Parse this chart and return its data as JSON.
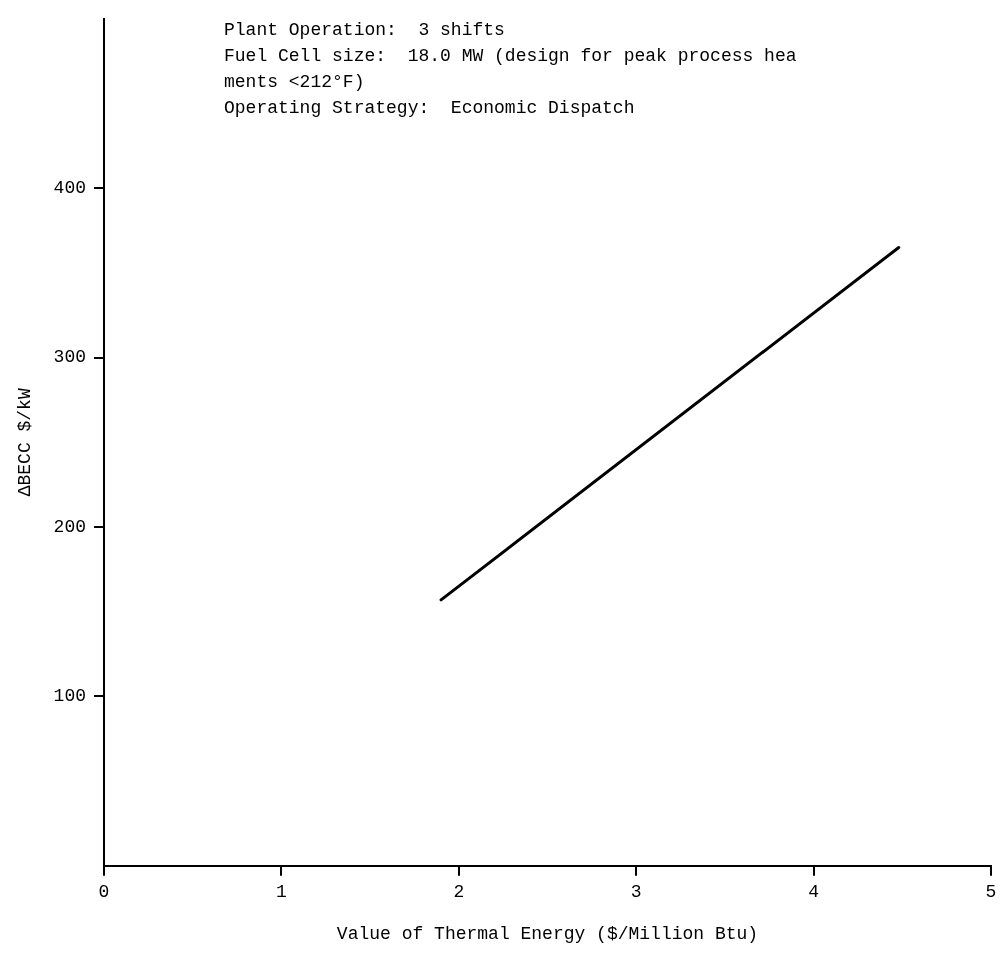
{
  "chart_data": {
    "type": "line",
    "xlabel": "Value of Thermal Energy ($/Million Btu)",
    "ylabel": "ΔBECC $/kW",
    "annotations": [
      "Plant Operation:  3 shifts",
      "Fuel Cell size:  18.0 MW (design for peak process hea",
      "ments <212°F)",
      "Operating Strategy:  Economic Dispatch"
    ],
    "series": [
      {
        "x": [
          1.9,
          4.48
        ],
        "values": [
          157,
          365
        ],
        "color": "#000000"
      }
    ],
    "xlim": [
      0,
      5
    ],
    "xticks": [
      0,
      1,
      2,
      3,
      4,
      5
    ],
    "ylim": [
      0,
      500
    ],
    "yticks": [
      100,
      200,
      300,
      400
    ],
    "grid": false,
    "legend": false,
    "marker": "none",
    "line_style": "solid"
  }
}
